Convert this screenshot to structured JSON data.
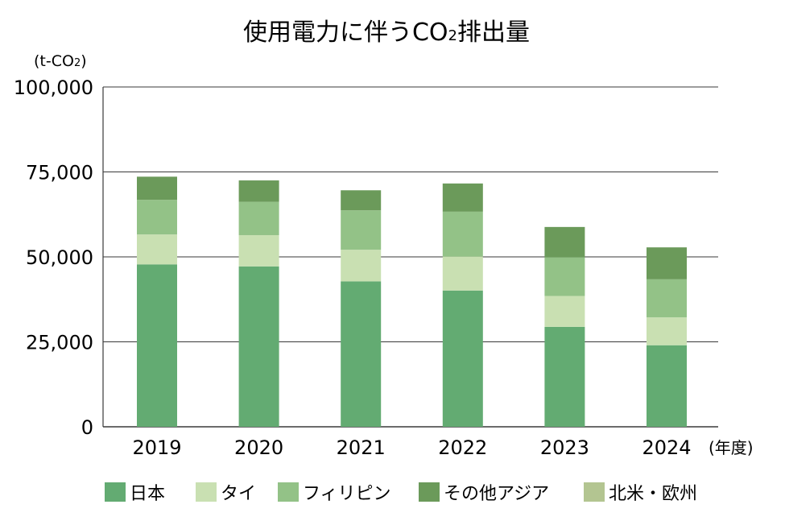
{
  "chart_data": {
    "type": "bar",
    "stacked": true,
    "title_main": "使用電力に伴うCO",
    "title_sub": "2",
    "title_tail": "排出量",
    "unit_prefix": "(t-CO",
    "unit_sub": "2",
    "unit_suffix": ")",
    "x_unit": "(年度)",
    "categories": [
      "2019",
      "2020",
      "2021",
      "2022",
      "2023",
      "2024"
    ],
    "ylim": [
      0,
      100000
    ],
    "yticks": [
      0,
      25000,
      50000,
      75000,
      100000
    ],
    "ytick_labels": [
      "0",
      "25,000",
      "50,000",
      "75,000",
      "100,000"
    ],
    "grid": true,
    "legend_position": "bottom",
    "series": [
      {
        "name": "日本",
        "color": "#63ab72",
        "values": [
          47800,
          47200,
          42800,
          40100,
          29400,
          24000
        ]
      },
      {
        "name": "タイ",
        "color": "#c9e0b2",
        "values": [
          8800,
          9200,
          9300,
          10000,
          9100,
          8200
        ]
      },
      {
        "name": "フィリピン",
        "color": "#93c287",
        "values": [
          10200,
          9800,
          11600,
          13200,
          11400,
          11200
        ]
      },
      {
        "name": "その他アジア",
        "color": "#6b9a5a",
        "values": [
          6800,
          6300,
          5900,
          8300,
          8900,
          9400
        ]
      },
      {
        "name": "北米・欧州",
        "color": "#b3c591",
        "values": [
          0,
          0,
          0,
          0,
          0,
          0
        ]
      }
    ]
  }
}
